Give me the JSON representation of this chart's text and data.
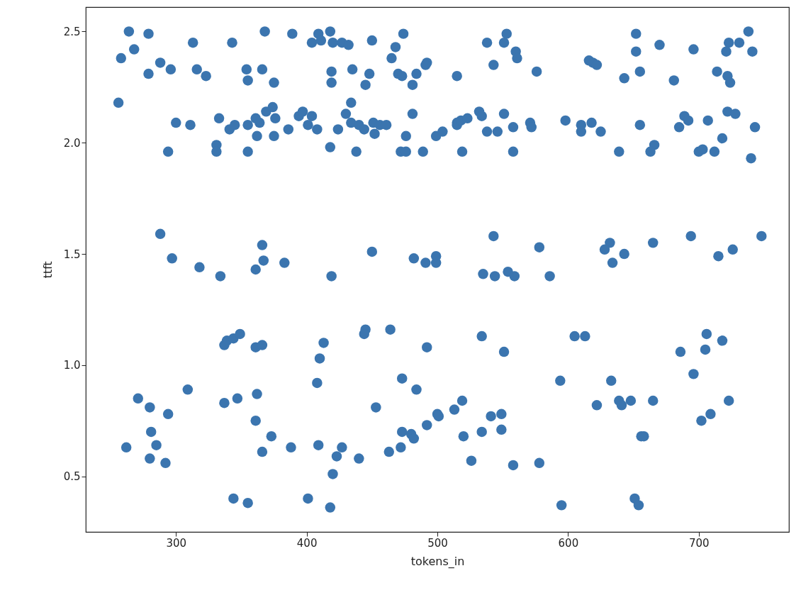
{
  "chart_data": {
    "type": "scatter",
    "xlabel": "tokens_in",
    "ylabel": "ttft",
    "xlim": [
      231,
      769
    ],
    "xticks": [
      300,
      400,
      500,
      600,
      700
    ],
    "ylim": [
      0.25,
      2.61
    ],
    "yticks": [
      0.5,
      {
        "value": 1,
        "label": "1.0"
      },
      1.5,
      {
        "value": 2,
        "label": "2.0"
      },
      2.5
    ],
    "grid": false,
    "marker": "circle",
    "series": [
      {
        "color": "#3b75af",
        "x": [
          264,
          279,
          268,
          258,
          313,
          343,
          368,
          389,
          409,
          418,
          404,
          411,
          420,
          427,
          432,
          450,
          468,
          474,
          465,
          492,
          491,
          470,
          473,
          484,
          481,
          288,
          296,
          279,
          316,
          323,
          354,
          366,
          355,
          375,
          419,
          419,
          435,
          448,
          445,
          256,
          434,
          481,
          300,
          311,
          333,
          341,
          345,
          355,
          361,
          364,
          369,
          374,
          376,
          362,
          375,
          386,
          394,
          397,
          404,
          401,
          408,
          424,
          430,
          434,
          440,
          444,
          451,
          456,
          461,
          452,
          476,
          499,
          294,
          331,
          331,
          355,
          418,
          438,
          472,
          476,
          489,
          288,
          553,
          538,
          551,
          560,
          561,
          543,
          515,
          576,
          652,
          652,
          670,
          696,
          723,
          721,
          731,
          738,
          741,
          616,
          619,
          622,
          655,
          643,
          681,
          714,
          722,
          724,
          504,
          515,
          515,
          518,
          523,
          532,
          534,
          551,
          538,
          546,
          558,
          571,
          572,
          519,
          558,
          598,
          610,
          610,
          618,
          625,
          655,
          639,
          666,
          663,
          689,
          692,
          685,
          707,
          722,
          728,
          743,
          718,
          700,
          703,
          712,
          740,
          543,
          578,
          632,
          628,
          643,
          665,
          694,
          715,
          726,
          748,
          450,
          366,
          297,
          318,
          334,
          361,
          367,
          383,
          419,
          482,
          491,
          499,
          499,
          445,
          444,
          464,
          492,
          337,
          339,
          344,
          349,
          361,
          366,
          413,
          410,
          408,
          309,
          271,
          280,
          294,
          337,
          347,
          362,
          361,
          281,
          285,
          262,
          280,
          292,
          373,
          366,
          388,
          409,
          427,
          423,
          440,
          420,
          344,
          355,
          401,
          418,
          473,
          484,
          453,
          500,
          492,
          473,
          480,
          482,
          472,
          463,
          634,
          535,
          544,
          554,
          559,
          586,
          534,
          551,
          605,
          613,
          706,
          718,
          705,
          686,
          696,
          594,
          633,
          519,
          513,
          501,
          541,
          549,
          549,
          534,
          520,
          526,
          558,
          578,
          622,
          639,
          641,
          648,
          665,
          723,
          709,
          702,
          656,
          658,
          595,
          651,
          654
        ],
        "values": [
          2.5,
          2.49,
          2.42,
          2.38,
          2.45,
          2.45,
          2.5,
          2.49,
          2.49,
          2.5,
          2.45,
          2.46,
          2.45,
          2.45,
          2.44,
          2.46,
          2.43,
          2.49,
          2.38,
          2.36,
          2.35,
          2.31,
          2.3,
          2.31,
          2.26,
          2.36,
          2.33,
          2.31,
          2.33,
          2.3,
          2.33,
          2.33,
          2.28,
          2.27,
          2.32,
          2.27,
          2.33,
          2.31,
          2.26,
          2.18,
          2.18,
          2.13,
          2.09,
          2.08,
          2.11,
          2.06,
          2.08,
          2.08,
          2.11,
          2.09,
          2.14,
          2.16,
          2.11,
          2.03,
          2.03,
          2.06,
          2.12,
          2.14,
          2.12,
          2.08,
          2.06,
          2.06,
          2.13,
          2.09,
          2.08,
          2.06,
          2.09,
          2.08,
          2.08,
          2.04,
          2.03,
          2.03,
          1.96,
          1.99,
          1.96,
          1.96,
          1.98,
          1.96,
          1.96,
          1.96,
          1.96,
          1.59,
          2.49,
          2.45,
          2.45,
          2.41,
          2.38,
          2.35,
          2.3,
          2.32,
          2.49,
          2.41,
          2.44,
          2.42,
          2.45,
          2.41,
          2.45,
          2.5,
          2.41,
          2.37,
          2.36,
          2.35,
          2.32,
          2.29,
          2.28,
          2.32,
          2.3,
          2.27,
          2.05,
          2.09,
          2.08,
          2.1,
          2.11,
          2.14,
          2.12,
          2.13,
          2.05,
          2.05,
          2.07,
          2.09,
          2.07,
          1.96,
          1.96,
          2.1,
          2.08,
          2.05,
          2.09,
          2.05,
          2.08,
          1.96,
          1.99,
          1.96,
          2.12,
          2.1,
          2.07,
          2.1,
          2.14,
          2.13,
          2.07,
          2.02,
          1.96,
          1.97,
          1.96,
          1.93,
          1.58,
          1.53,
          1.55,
          1.52,
          1.5,
          1.55,
          1.58,
          1.49,
          1.52,
          1.58,
          1.51,
          1.54,
          1.48,
          1.44,
          1.4,
          1.43,
          1.47,
          1.46,
          1.4,
          1.48,
          1.46,
          1.46,
          1.49,
          1.16,
          1.14,
          1.16,
          1.08,
          1.09,
          1.11,
          1.12,
          1.14,
          1.08,
          1.09,
          1.1,
          1.03,
          0.92,
          0.89,
          0.85,
          0.81,
          0.78,
          0.83,
          0.85,
          0.87,
          0.75,
          0.7,
          0.64,
          0.63,
          0.58,
          0.56,
          0.68,
          0.61,
          0.63,
          0.64,
          0.63,
          0.59,
          0.58,
          0.51,
          0.4,
          0.38,
          0.4,
          0.36,
          0.94,
          0.89,
          0.81,
          0.78,
          0.73,
          0.7,
          0.69,
          0.67,
          0.63,
          0.61,
          1.46,
          1.41,
          1.4,
          1.42,
          1.4,
          1.4,
          1.13,
          1.06,
          1.13,
          1.13,
          1.14,
          1.11,
          1.07,
          1.06,
          0.96,
          0.93,
          0.93,
          0.84,
          0.8,
          0.77,
          0.77,
          0.78,
          0.71,
          0.7,
          0.68,
          0.57,
          0.55,
          0.56,
          0.82,
          0.84,
          0.82,
          0.84,
          0.84,
          0.84,
          0.78,
          0.75,
          0.68,
          0.68,
          0.37,
          0.4,
          0.37
        ]
      }
    ]
  }
}
